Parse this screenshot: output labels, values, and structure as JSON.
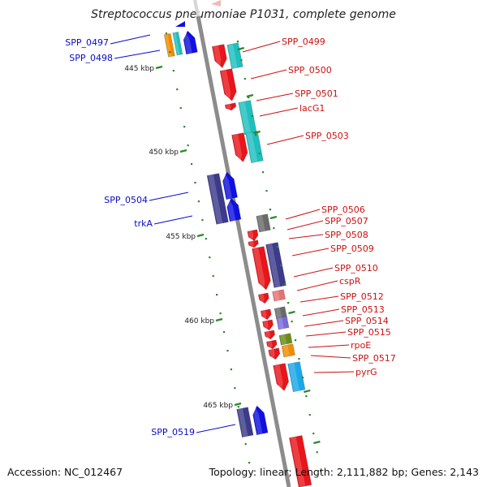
{
  "title": "Streptococcus pneumoniae P1031, complete genome",
  "footer": {
    "accession": "Accession: NC_012467",
    "summary": "Topology: linear; Length: 2,111,882 bp; Genes: 2,143"
  },
  "colors": {
    "backbone": "#8c8c8c",
    "tick": "#2a8a2a",
    "label_forward": "#0a0acc",
    "label_reverse": "#cc1010",
    "gene_red": "#e8151b",
    "gene_blue": "#1010e0",
    "gene_navy": "#3c3a8a",
    "gene_cyan": "#1fbfbf",
    "gene_gray": "#6a6a6a",
    "gene_pink": "#e87070",
    "gene_lavender": "#7a6ad8",
    "gene_olive": "#6a8a1a",
    "gene_orange": "#f08c00",
    "gene_sky": "#1aa8e8"
  },
  "scale_labels": [
    "445 kbp",
    "450 kbp",
    "455 kbp",
    "460 kbp",
    "465 kbp"
  ],
  "genes_forward": [
    {
      "label": "SPP_0497",
      "color": "gene_orange"
    },
    {
      "label": "SPP_0498",
      "color": "gene_blue"
    },
    {
      "label": "SPP_0504",
      "color": "gene_navy"
    },
    {
      "label": "trkA",
      "color": "gene_blue"
    },
    {
      "label": "SPP_0519",
      "color": "gene_blue"
    }
  ],
  "genes_reverse": [
    {
      "label": "SPP_0499",
      "color": "gene_red"
    },
    {
      "label": "SPP_0500",
      "color": "gene_red"
    },
    {
      "label": "SPP_0501",
      "color": "gene_red"
    },
    {
      "label": "lacG1",
      "color": "gene_cyan"
    },
    {
      "label": "SPP_0503",
      "color": "gene_red"
    },
    {
      "label": "SPP_0506",
      "color": "gene_gray"
    },
    {
      "label": "SPP_0507",
      "color": "gene_red"
    },
    {
      "label": "SPP_0508",
      "color": "gene_red"
    },
    {
      "label": "SPP_0509",
      "color": "gene_navy"
    },
    {
      "label": "SPP_0510",
      "color": "gene_red"
    },
    {
      "label": "cspR",
      "color": "gene_pink"
    },
    {
      "label": "SPP_0512",
      "color": "gene_red"
    },
    {
      "label": "SPP_0513",
      "color": "gene_gray"
    },
    {
      "label": "SPP_0514",
      "color": "gene_lavender"
    },
    {
      "label": "SPP_0515",
      "color": "gene_red"
    },
    {
      "label": "rpoE",
      "color": "gene_olive"
    },
    {
      "label": "SPP_0517",
      "color": "gene_orange"
    },
    {
      "label": "pyrG",
      "color": "gene_sky"
    }
  ]
}
